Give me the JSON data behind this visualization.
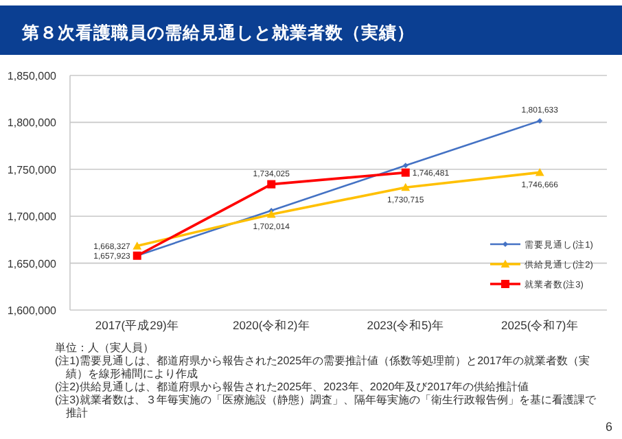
{
  "chart_data": {
    "type": "line",
    "title": "第８次看護職員の需給見通しと就業者数（実績）",
    "categories": [
      "2017(平成29)年",
      "2020(令和2)年",
      "2023(令和5)年",
      "2025(令和7)年"
    ],
    "series": [
      {
        "name": "需要見通し(注1)",
        "color": "#4472c4",
        "marker": "diamond",
        "values": [
          1658000,
          1706000,
          1754000,
          1801633
        ],
        "value_labels": [
          null,
          null,
          null,
          "1,801,633"
        ]
      },
      {
        "name": "供給見通し(注2)",
        "color": "#ffc000",
        "marker": "triangle",
        "values": [
          1668327,
          1702014,
          1730715,
          1746666
        ],
        "value_labels": [
          "1,668,327",
          "1,702,014",
          "1,730,715",
          "1,746,666"
        ]
      },
      {
        "name": "就業者数(注3)",
        "color": "#ff0000",
        "marker": "square",
        "values": [
          1657923,
          1734025,
          1746481,
          null
        ],
        "value_labels": [
          "1,657,923",
          "1,734,025",
          "1,746,481",
          null
        ]
      }
    ],
    "ylim": [
      1600000,
      1850000
    ],
    "yticks": [
      {
        "value": 1600000,
        "label": "1,600,000"
      },
      {
        "value": 1650000,
        "label": "1,650,000"
      },
      {
        "value": 1700000,
        "label": "1,700,000"
      },
      {
        "value": 1750000,
        "label": "1,750,000"
      },
      {
        "value": 1800000,
        "label": "1,800,000"
      },
      {
        "value": 1850000,
        "label": "1,850,000"
      }
    ],
    "grid": "y",
    "legend": "right",
    "annotations": [
      "単位：人（実人員）",
      "(注1)需要見通しは、都道府県から報告された2025年の需要推計値（係数等処理前）と2017年の就業者数（実績）を線形補間により作成",
      "(注2)供給見通しは、都道府県から報告された2025年、2023年、2020年及び2017年の供給推計値",
      "(注3)就業者数は、３年毎実施の「医療施設（静態）調査」、隔年毎実施の「衛生行政報告例」を基に看護課で推計",
      "6"
    ]
  }
}
